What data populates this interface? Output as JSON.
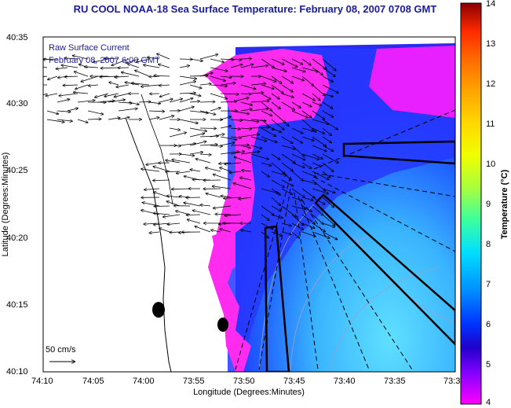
{
  "title": "RU COOL   NOAA-18  Sea Surface Temperature:  February 08, 2007 0708 GMT",
  "legend": {
    "line1": "Raw Surface Current",
    "line2": "February 08, 2007 6:00 GMT"
  },
  "axes": {
    "xlabel": "Longitude (Degrees:Minutes)",
    "ylabel": "Latitude (Degrees:Minutes)",
    "xticks": [
      "74:10",
      "74:05",
      "74:00",
      "73:55",
      "73:50",
      "73:45",
      "73:40",
      "73:35",
      "73:3"
    ],
    "yticks": [
      "40:35",
      "40:30",
      "40:25",
      "40:20",
      "40:15",
      "40:10"
    ]
  },
  "scale_label": "50 cm/s",
  "colorbar": {
    "label": "Temperature (°C)",
    "ticks": [
      "14",
      "13",
      "12",
      "11",
      "10",
      "9",
      "8",
      "7",
      "6",
      "5",
      "4"
    ],
    "colors": [
      "#8b0000",
      "#d40000",
      "#ff2a00",
      "#ff6a00",
      "#ffa500",
      "#ffd800",
      "#f0ff00",
      "#a8ff3c",
      "#3cff9e",
      "#00e0ff",
      "#008cff",
      "#0033ff",
      "#2200cc",
      "#8000ff",
      "#ff00ff"
    ]
  },
  "colors": {
    "land": "#ffffff",
    "water_warm": "#ff33ff",
    "water_mid": "#2a3cff",
    "water_cool": "#3cc8ff",
    "arrow": "#000000",
    "title": "#1a1aa0"
  }
}
